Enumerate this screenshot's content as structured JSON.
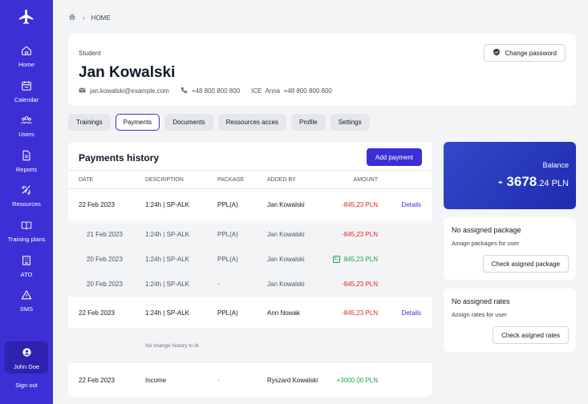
{
  "sidebar": {
    "items": [
      {
        "label": "Home",
        "icon": "home-icon"
      },
      {
        "label": "Calendar",
        "icon": "calendar-icon"
      },
      {
        "label": "Users",
        "icon": "users-icon"
      },
      {
        "label": "Reports",
        "icon": "reports-icon"
      },
      {
        "label": "Resources",
        "icon": "resources-icon"
      },
      {
        "label": "Training plans",
        "icon": "book-icon"
      },
      {
        "label": "ATO",
        "icon": "building-icon"
      },
      {
        "label": "SMS",
        "icon": "warning-icon"
      }
    ],
    "user": "John Doe",
    "signout": "Sign out",
    "bg_color": "#3d2fd6"
  },
  "breadcrumb": {
    "current": "HOME"
  },
  "profile": {
    "role": "Student",
    "name": "Jan Kowalski",
    "email": "jan.kowalski@example.com",
    "phone": "+48 800 800 800",
    "ice": "ICE  Anna  +48 800 800 800",
    "change_password": "Change password"
  },
  "tabs": [
    {
      "label": "Trainings",
      "active": false
    },
    {
      "label": "Payments",
      "active": true
    },
    {
      "label": "Documents",
      "active": false
    },
    {
      "label": "Ressources acces",
      "active": false
    },
    {
      "label": "Profile",
      "active": false
    },
    {
      "label": "Settings",
      "active": false
    }
  ],
  "payments": {
    "title": "Payments history",
    "add_button": "Add payment",
    "columns": {
      "date": "DATE",
      "description": "DESCRIPTION",
      "package": "PACKAGE",
      "added_by": "ADDED BY",
      "amount": "AMOUNT"
    },
    "rows": [
      {
        "date": "22 Feb 2023",
        "description": "1:24h | SP-ALK",
        "package": "PPL(A)",
        "added_by": "Jan Kowalski",
        "amount": "-845,23 PLN",
        "details": "Details"
      },
      {
        "date": "21 Feb 2023",
        "description": "1:24h | SP-ALK",
        "package": "PPL(A)",
        "added_by": "Jan Kowalski",
        "amount": "-845,23 PLN"
      },
      {
        "date": "20 Feb 2023",
        "description": "1:24h | SP-ALK",
        "package": "PPL(A)",
        "added_by": "Jan Kowalski",
        "amount": "845,23 PLN"
      },
      {
        "date": "20 Feb 2023",
        "description": "1:24h | SP-ALK",
        "package": "-",
        "added_by": "Jan Kowalski",
        "amount": "-845,23 PLN"
      },
      {
        "date": "22 Feb 2023",
        "description": "1:24h | SP-ALK",
        "package": "PPL(A)",
        "added_by": "Ann Nowak",
        "amount": "-845,23 PLN",
        "details": "Details"
      },
      {
        "note": "No change history to di"
      },
      {
        "date": "22 Feb 2023",
        "description": "Income",
        "package": "-",
        "added_by": "Ryszard Kowalski",
        "amount": "+3000.00 PLN"
      }
    ]
  },
  "balance": {
    "label": "Balance",
    "value_main": "- 3678",
    "value_decimal": ".24 PLN"
  },
  "package_card": {
    "title": "No assigned package",
    "subtitle": "Assign packages for user",
    "button": "Check asigned package"
  },
  "rates_card": {
    "title": "No assigned rates",
    "subtitle": "Assign rates for user",
    "button": "Check asigned rates"
  }
}
